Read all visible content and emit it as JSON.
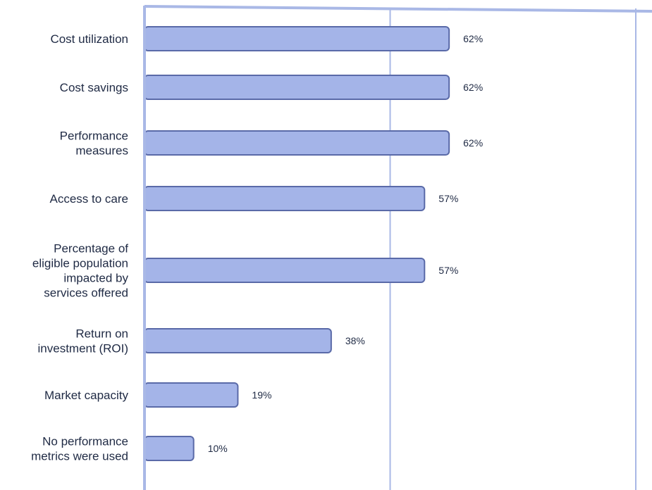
{
  "chart_data": {
    "type": "bar",
    "orientation": "horizontal",
    "categories": [
      "Cost utilization",
      "Cost savings",
      "Performance measures",
      "Access to care",
      "Percentage of eligible population impacted by services offered",
      "Return on investment (ROI)",
      "Market capacity",
      "No performance metrics were used"
    ],
    "category_lines": [
      [
        "Cost utilization"
      ],
      [
        "Cost savings"
      ],
      [
        "Performance",
        "measures"
      ],
      [
        "Access to care"
      ],
      [
        "Percentage of",
        "eligible population",
        "impacted by",
        "services offered"
      ],
      [
        "Return on",
        "investment (ROI)"
      ],
      [
        "Market capacity"
      ],
      [
        "No performance",
        "metrics were used"
      ]
    ],
    "values": [
      62,
      62,
      62,
      57,
      57,
      38,
      19,
      10
    ],
    "value_labels": [
      "62%",
      "62%",
      "62%",
      "57%",
      "57%",
      "38%",
      "19%",
      "10%"
    ],
    "title": "",
    "xlabel": "",
    "ylabel": "",
    "xlim": [
      0,
      100
    ],
    "grid": true,
    "legend": "none",
    "colors": {
      "bar_fill": "#a4b4e8",
      "bar_stroke": "#5a6aa8",
      "axis": "#a9b8e6",
      "gridline": "#a9b8e6",
      "text": "#1f2a44"
    }
  }
}
